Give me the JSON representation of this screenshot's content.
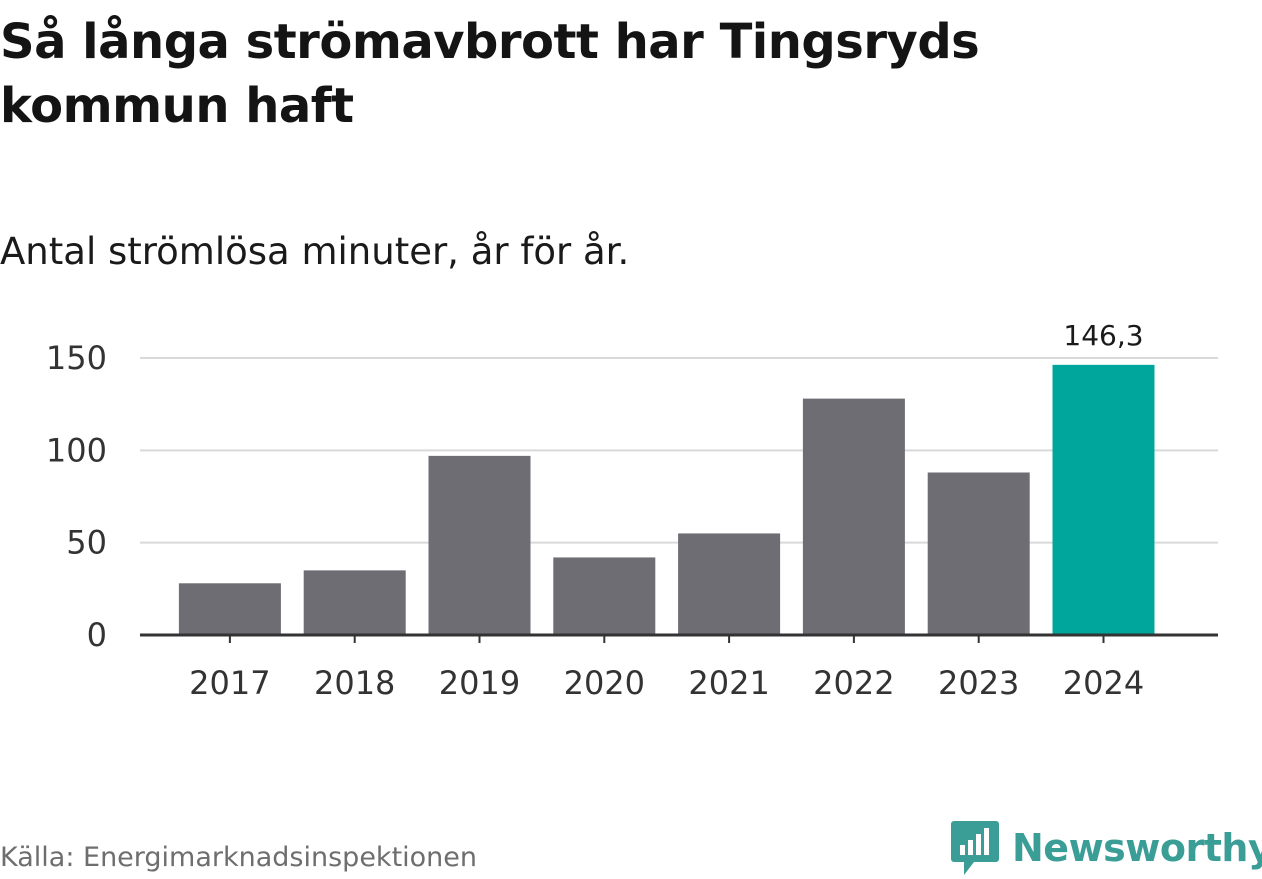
{
  "header": {
    "title": "Så långa strömavbrott har Tingsryds kommun haft",
    "subtitle": "Antal strömlösa minuter, år för år."
  },
  "footer": {
    "source": "Källa: Energimarknadsinspektionen",
    "brand": "Newsworthy"
  },
  "colors": {
    "bar_default": "#6e6d74",
    "bar_highlight": "#00a59b",
    "gridline": "#d9d9d9",
    "axis": "#333333",
    "brand": "#3a9e96"
  },
  "icons": {
    "logo": "newsworthy-logo-icon"
  },
  "chart_data": {
    "type": "bar",
    "title": "Så långa strömavbrott har Tingsryds kommun haft",
    "subtitle": "Antal strömlösa minuter, år för år.",
    "xlabel": "",
    "ylabel": "",
    "categories": [
      "2017",
      "2018",
      "2019",
      "2020",
      "2021",
      "2022",
      "2023",
      "2024"
    ],
    "values": [
      28,
      35,
      97,
      42,
      55,
      128,
      88,
      146.3
    ],
    "highlight_index": 7,
    "data_labels": [
      {
        "index": 7,
        "text": "146,3"
      }
    ],
    "ylim": [
      0,
      150
    ],
    "yticks": [
      0,
      50,
      100,
      150
    ],
    "grid": true,
    "legend": "none"
  }
}
